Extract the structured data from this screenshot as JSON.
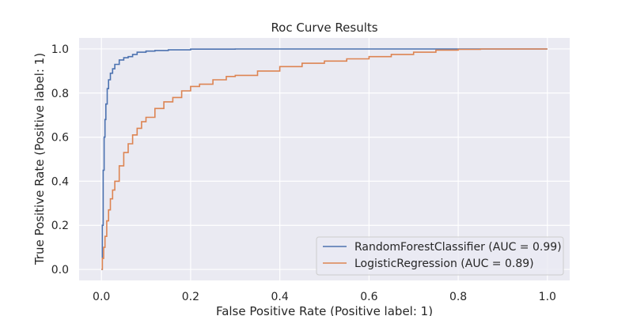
{
  "chart_data": {
    "type": "line",
    "title": "Roc Curve Results",
    "xlabel": "False Positive Rate (Positive label: 1)",
    "ylabel": "True Positive Rate (Positive label: 1)",
    "xlim": [
      -0.05,
      1.05
    ],
    "ylim": [
      -0.05,
      1.05
    ],
    "xticks": [
      0.0,
      0.2,
      0.4,
      0.6,
      0.8,
      1.0
    ],
    "yticks": [
      0.0,
      0.2,
      0.4,
      0.6,
      0.8,
      1.0
    ],
    "tick_labels_x": [
      "0.0",
      "0.2",
      "0.4",
      "0.6",
      "0.8",
      "1.0"
    ],
    "tick_labels_y": [
      "0.0",
      "0.2",
      "0.4",
      "0.6",
      "0.8",
      "1.0"
    ],
    "grid": true,
    "legend_position": "lower-right",
    "series": [
      {
        "name": "RandomForestClassifier (AUC = 0.99)",
        "color": "#4C72B0",
        "x": [
          0.0,
          0.002,
          0.004,
          0.006,
          0.008,
          0.01,
          0.013,
          0.016,
          0.02,
          0.025,
          0.03,
          0.04,
          0.05,
          0.06,
          0.07,
          0.08,
          0.1,
          0.12,
          0.15,
          0.2,
          0.3,
          0.5,
          0.8,
          1.0
        ],
        "y": [
          0.0,
          0.2,
          0.45,
          0.6,
          0.68,
          0.75,
          0.82,
          0.86,
          0.89,
          0.91,
          0.93,
          0.95,
          0.96,
          0.965,
          0.975,
          0.985,
          0.99,
          0.993,
          0.996,
          0.999,
          1.0,
          1.0,
          1.0,
          1.0
        ]
      },
      {
        "name": "LogisticRegression (AUC = 0.89)",
        "color": "#DD8452",
        "x": [
          0.0,
          0.002,
          0.005,
          0.008,
          0.012,
          0.016,
          0.02,
          0.025,
          0.03,
          0.04,
          0.05,
          0.06,
          0.07,
          0.08,
          0.09,
          0.1,
          0.12,
          0.14,
          0.16,
          0.18,
          0.2,
          0.22,
          0.25,
          0.28,
          0.3,
          0.35,
          0.4,
          0.45,
          0.5,
          0.55,
          0.6,
          0.65,
          0.7,
          0.75,
          0.8,
          0.85,
          1.0
        ],
        "y": [
          0.0,
          0.05,
          0.1,
          0.15,
          0.22,
          0.27,
          0.32,
          0.36,
          0.4,
          0.47,
          0.53,
          0.57,
          0.61,
          0.64,
          0.67,
          0.69,
          0.73,
          0.76,
          0.78,
          0.81,
          0.83,
          0.84,
          0.86,
          0.875,
          0.88,
          0.9,
          0.92,
          0.935,
          0.945,
          0.955,
          0.965,
          0.975,
          0.985,
          0.995,
          0.998,
          1.0,
          1.0
        ]
      }
    ]
  }
}
